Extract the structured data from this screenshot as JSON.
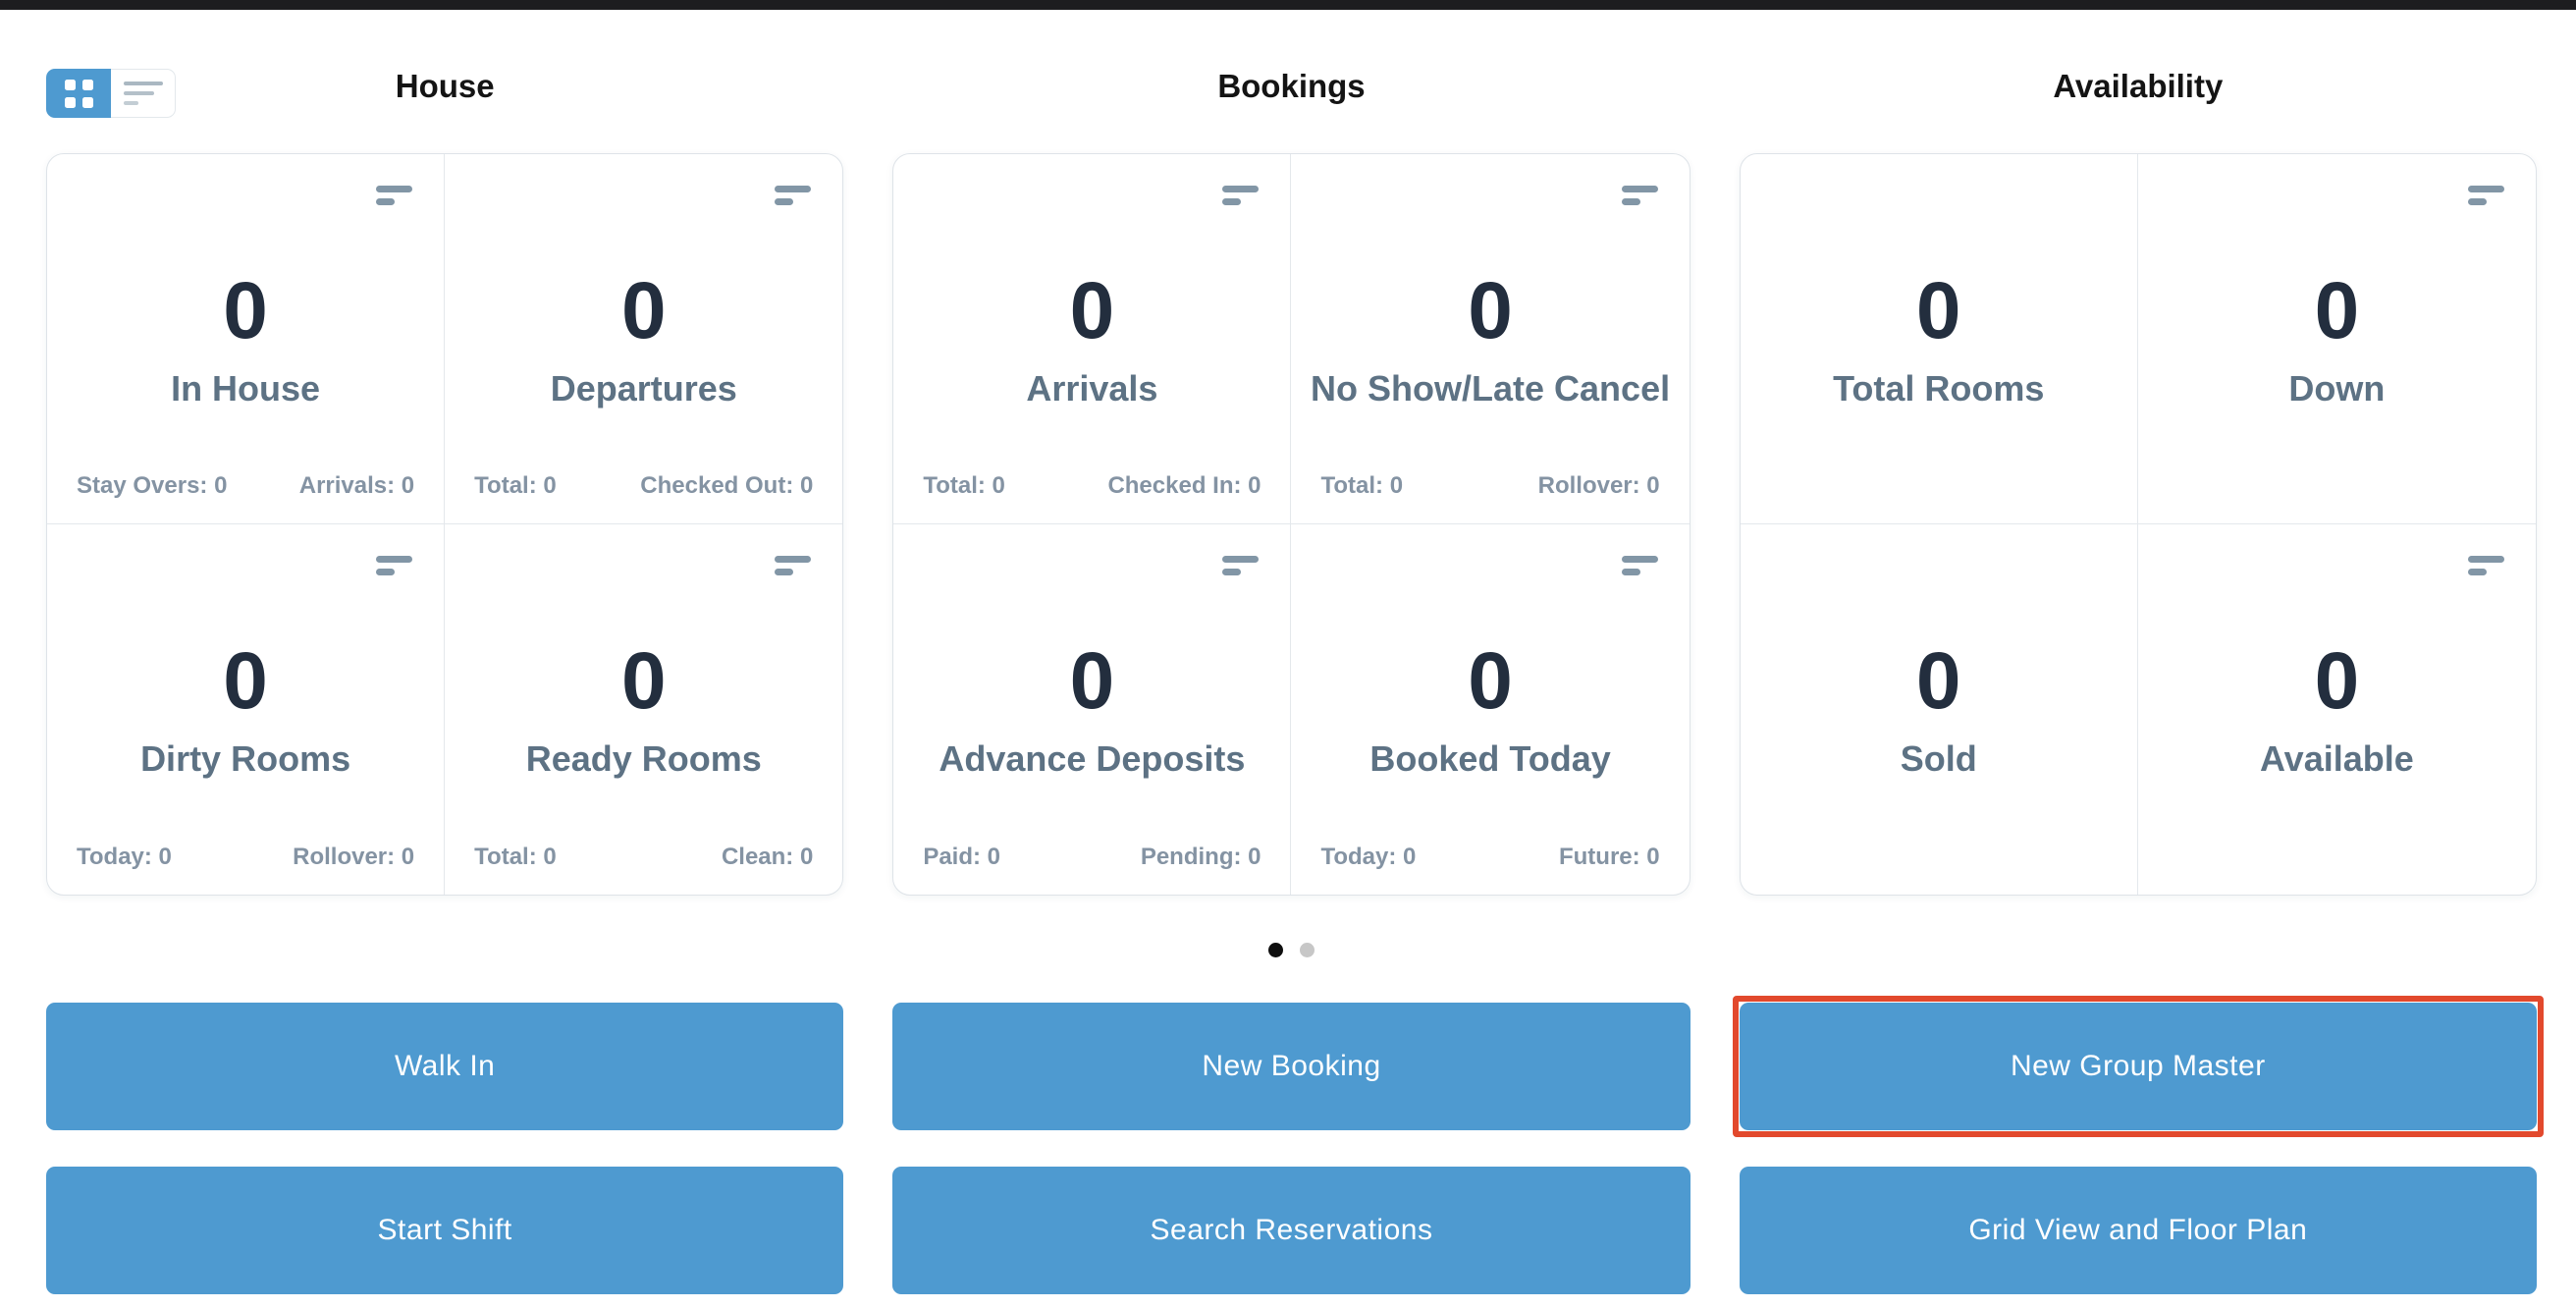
{
  "colors": {
    "accent_blue": "#4e9ad0",
    "highlight_red": "#e2492d",
    "stat_number": "#232e3e",
    "stat_label": "#5d7284",
    "stat_footer": "#8493a3",
    "dot_active": "#0f0f0f",
    "dot_inactive": "#c7c7c7",
    "top_bar": "#1d1d1f"
  },
  "view_toggle": {
    "grid_icon": "grid-view-icon",
    "list_icon": "list-view-icon",
    "active": "grid"
  },
  "sections": [
    {
      "title": "House",
      "cards": [
        {
          "value": "0",
          "label": "In House",
          "footer_left": "Stay Overs: 0",
          "footer_right": "Arrivals: 0"
        },
        {
          "value": "0",
          "label": "Departures",
          "footer_left": "Total: 0",
          "footer_right": "Checked Out: 0"
        },
        {
          "value": "0",
          "label": "Dirty Rooms",
          "footer_left": "Today: 0",
          "footer_right": "Rollover: 0"
        },
        {
          "value": "0",
          "label": "Ready Rooms",
          "footer_left": "Total: 0",
          "footer_right": "Clean: 0"
        }
      ]
    },
    {
      "title": "Bookings",
      "cards": [
        {
          "value": "0",
          "label": "Arrivals",
          "footer_left": "Total: 0",
          "footer_right": "Checked In: 0"
        },
        {
          "value": "0",
          "label": "No Show/Late Cancel",
          "footer_left": "Total: 0",
          "footer_right": "Rollover: 0"
        },
        {
          "value": "0",
          "label": "Advance Deposits",
          "footer_left": "Paid: 0",
          "footer_right": "Pending: 0"
        },
        {
          "value": "0",
          "label": "Booked Today",
          "footer_left": "Today: 0",
          "footer_right": "Future: 0"
        }
      ]
    },
    {
      "title": "Availability",
      "cards": [
        {
          "value": "0",
          "label": "Total Rooms"
        },
        {
          "value": "0",
          "label": "Down"
        },
        {
          "value": "0",
          "label": "Sold"
        },
        {
          "value": "0",
          "label": "Available"
        }
      ]
    }
  ],
  "carousel": {
    "page_count": 2,
    "active_page": 1
  },
  "actions": {
    "row1": [
      {
        "label": "Walk In"
      },
      {
        "label": "New Booking"
      },
      {
        "label": "New Group Master",
        "highlighted": true
      }
    ],
    "row2": [
      {
        "label": "Start Shift"
      },
      {
        "label": "Search Reservations"
      },
      {
        "label": "Grid View and Floor Plan"
      }
    ]
  }
}
